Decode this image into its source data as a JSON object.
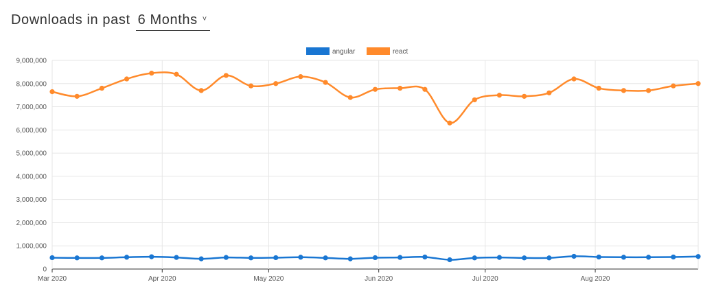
{
  "header": {
    "prefix": "Downloads in past",
    "period_value": "6 Months",
    "chevron_icon": "chevron-down-icon"
  },
  "chart_data": {
    "type": "line",
    "title": "",
    "xlabel": "",
    "ylabel": "",
    "ylim": [
      0,
      9000000
    ],
    "yticks": [
      0,
      1000000,
      2000000,
      3000000,
      4000000,
      5000000,
      6000000,
      7000000,
      8000000,
      9000000
    ],
    "ytick_labels": [
      "0",
      "1,000,000",
      "2,000,000",
      "3,000,000",
      "4,000,000",
      "5,000,000",
      "6,000,000",
      "7,000,000",
      "8,000,000",
      "9,000,000"
    ],
    "xlim": [
      "2020-03-01",
      "2020-08-30"
    ],
    "xticks": [
      "2020-03-01",
      "2020-04-01",
      "2020-05-01",
      "2020-06-01",
      "2020-07-01",
      "2020-08-01"
    ],
    "xtick_labels": [
      "Mar 2020",
      "Apr 2020",
      "May 2020",
      "Jun 2020",
      "Jul 2020",
      "Aug 2020"
    ],
    "x": [
      "2020-03-01",
      "2020-03-08",
      "2020-03-15",
      "2020-03-22",
      "2020-03-29",
      "2020-04-05",
      "2020-04-12",
      "2020-04-19",
      "2020-04-26",
      "2020-05-03",
      "2020-05-10",
      "2020-05-17",
      "2020-05-24",
      "2020-05-31",
      "2020-06-07",
      "2020-06-14",
      "2020-06-21",
      "2020-06-28",
      "2020-07-05",
      "2020-07-12",
      "2020-07-19",
      "2020-07-26",
      "2020-08-02",
      "2020-08-09",
      "2020-08-16",
      "2020-08-23",
      "2020-08-30"
    ],
    "series": [
      {
        "name": "angular",
        "color": "#1976d2",
        "values": [
          490000,
          480000,
          480000,
          510000,
          530000,
          500000,
          440000,
          500000,
          480000,
          490000,
          510000,
          480000,
          440000,
          490000,
          500000,
          520000,
          400000,
          480000,
          500000,
          480000,
          480000,
          550000,
          520000,
          510000,
          510000,
          520000,
          540000
        ]
      },
      {
        "name": "react",
        "color": "#ff8a2b",
        "values": [
          7650000,
          7450000,
          7800000,
          8200000,
          8450000,
          8400000,
          7700000,
          8350000,
          7900000,
          8000000,
          8300000,
          8050000,
          7400000,
          7750000,
          7800000,
          7750000,
          6300000,
          7300000,
          7500000,
          7450000,
          7600000,
          8200000,
          7800000,
          7700000,
          7700000,
          7900000,
          8000000
        ]
      }
    ],
    "grid": true,
    "legend_position": "top-center"
  }
}
